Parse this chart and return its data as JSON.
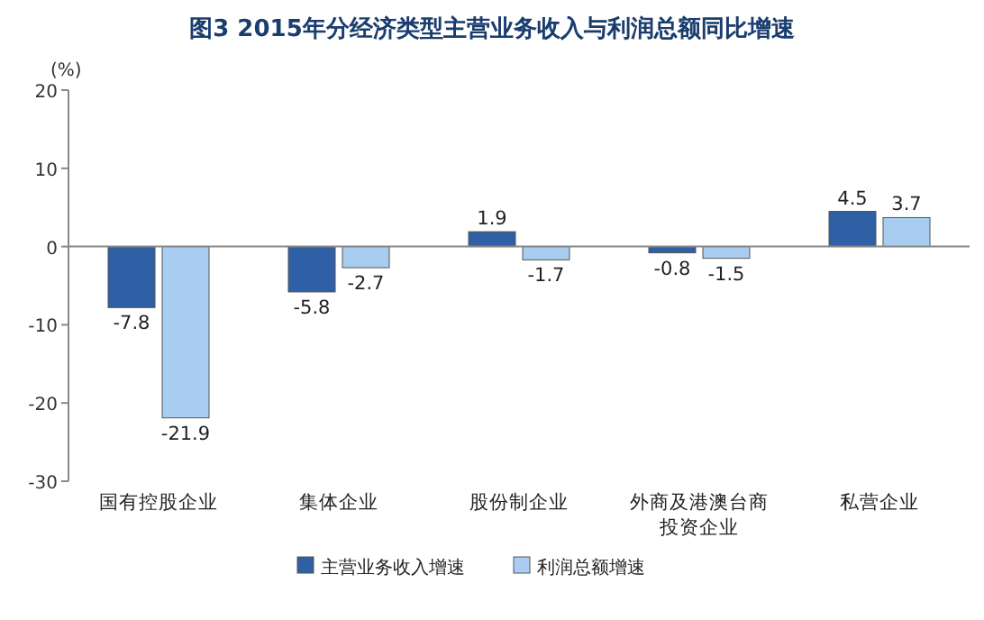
{
  "chart_data": {
    "type": "bar",
    "title": "图3 2015年分经济类型主营业务收入与利润总额同比增速",
    "ylabel": "(%)",
    "categories": [
      "国有控股企业",
      "集体企业",
      "股份制企业",
      "外商及港澳台商投资企业",
      "私营企业"
    ],
    "series": [
      {
        "name": "主营业务收入增速",
        "color": "#2f5fa5",
        "values": [
          -7.8,
          -5.8,
          1.9,
          -0.8,
          4.5
        ]
      },
      {
        "name": "利润总额增速",
        "color": "#a8cdf0",
        "values": [
          -21.9,
          -2.7,
          -1.7,
          -1.5,
          3.7
        ]
      }
    ],
    "ylim": [
      -30,
      20
    ],
    "yticks": [
      -30,
      -20,
      -10,
      0,
      10,
      20
    ],
    "data_labels": true,
    "legend": "bottom"
  }
}
